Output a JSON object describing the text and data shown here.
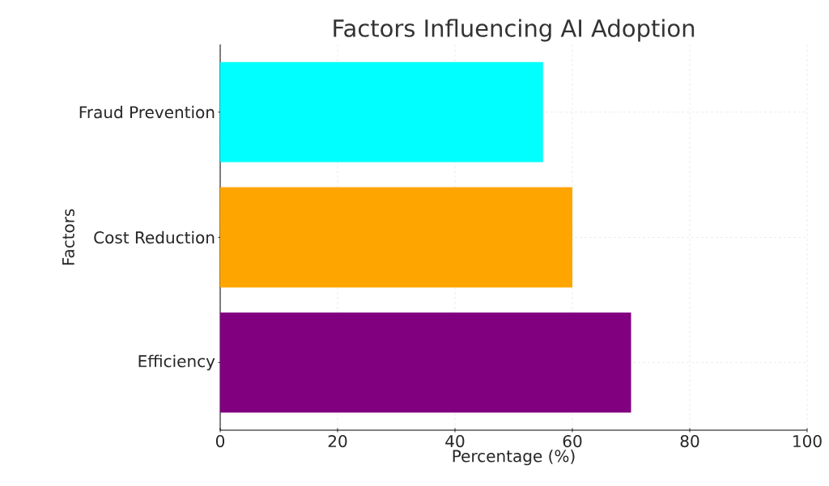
{
  "chart_data": {
    "type": "bar",
    "orientation": "horizontal",
    "title": "Factors Influencing AI Adoption",
    "xlabel": "Percentage (%)",
    "ylabel": "Factors",
    "categories": [
      "Fraud Prevention",
      "Cost Reduction",
      "Efficiency"
    ],
    "values": [
      55,
      60,
      70
    ],
    "colors": [
      "#00ffff",
      "#ffa500",
      "#800080"
    ],
    "xlim": [
      0,
      100
    ],
    "xticks": [
      0,
      20,
      40,
      60,
      80,
      100
    ],
    "grid": true
  }
}
